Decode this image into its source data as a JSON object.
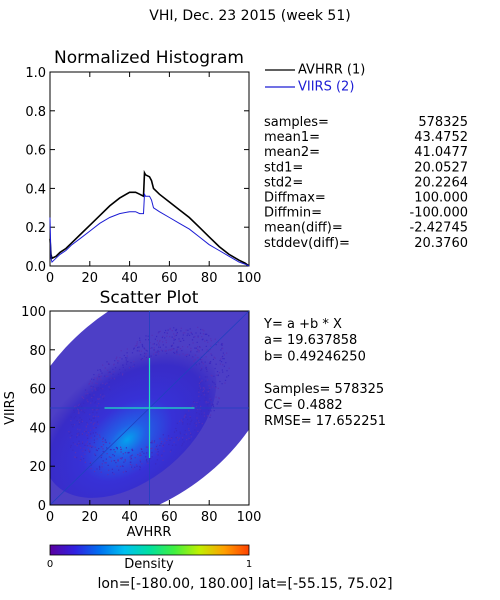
{
  "figure": {
    "title": "VHI,  Dec. 23 2015 (week 51)",
    "footer": "lon=[-180.00, 180.00] lat=[-55.15, 75.02]"
  },
  "chart_data": [
    {
      "type": "line",
      "title": "Normalized Histogram",
      "xlim": [
        0,
        100
      ],
      "ylim": [
        0,
        1.0
      ],
      "xticks": [
        "0",
        "20",
        "40",
        "60",
        "80",
        "100"
      ],
      "yticks": [
        "0.0",
        "0.2",
        "0.4",
        "0.6",
        "0.8",
        "1.0"
      ],
      "series": [
        {
          "name": "AVHRR (1)",
          "color": "#000000",
          "x": [
            0,
            0.5,
            1,
            3,
            5,
            8,
            11,
            15,
            20,
            25,
            30,
            35,
            40,
            43,
            45,
            47,
            47.5,
            48,
            50,
            51,
            52,
            55,
            60,
            65,
            70,
            75,
            80,
            85,
            90,
            95,
            98,
            100
          ],
          "y": [
            0.14,
            0.06,
            0.04,
            0.05,
            0.07,
            0.09,
            0.12,
            0.16,
            0.21,
            0.26,
            0.31,
            0.35,
            0.38,
            0.38,
            0.37,
            0.36,
            0.48,
            0.47,
            0.46,
            0.44,
            0.4,
            0.37,
            0.33,
            0.29,
            0.25,
            0.2,
            0.15,
            0.1,
            0.06,
            0.03,
            0.015,
            0.0
          ]
        },
        {
          "name": "VIIRS (2)",
          "color": "#1c1cd4",
          "x": [
            0,
            0.5,
            1,
            3,
            5,
            8,
            11,
            15,
            20,
            25,
            30,
            35,
            40,
            43,
            45,
            47,
            47.5,
            48,
            50,
            51,
            52,
            55,
            60,
            65,
            70,
            75,
            80,
            85,
            90,
            95,
            98,
            100
          ],
          "y": [
            0.25,
            0.04,
            0.02,
            0.04,
            0.06,
            0.08,
            0.11,
            0.14,
            0.18,
            0.22,
            0.25,
            0.27,
            0.28,
            0.28,
            0.27,
            0.27,
            0.37,
            0.36,
            0.36,
            0.34,
            0.3,
            0.28,
            0.25,
            0.22,
            0.19,
            0.15,
            0.11,
            0.08,
            0.05,
            0.02,
            0.01,
            0.0
          ]
        }
      ],
      "stats": [
        {
          "label": "samples=",
          "value": "578325"
        },
        {
          "label": "mean1=",
          "value": "43.4752"
        },
        {
          "label": "mean2=",
          "value": "41.0477"
        },
        {
          "label": "std1=",
          "value": "20.0527"
        },
        {
          "label": "std2=",
          "value": "20.2264"
        },
        {
          "label": "Diffmax=",
          "value": "100.000"
        },
        {
          "label": "Diffmin=",
          "value": "-100.000"
        },
        {
          "label": "mean(diff)=",
          "value": "-2.42745"
        },
        {
          "label": "stddev(diff)=",
          "value": "20.3760"
        }
      ]
    },
    {
      "type": "scatter",
      "title": "Scatter Plot",
      "xlabel": "AVHRR",
      "ylabel": "VIIRS",
      "xlim": [
        0,
        100
      ],
      "ylim": [
        0,
        100
      ],
      "xticks": [
        "0",
        "20",
        "40",
        "60",
        "80",
        "100"
      ],
      "yticks": [
        "0",
        "20",
        "40",
        "60",
        "80",
        "100"
      ],
      "reference_lines": {
        "x": 50,
        "y": 50,
        "one_to_one": true
      },
      "regression": {
        "a": 19.637858,
        "b": 0.4924625
      },
      "density_center": [
        42,
        38
      ],
      "annotations": [
        "Y= a +b * X",
        "a= 19.637858",
        "b= 0.49246250",
        "",
        "Samples= 578325",
        "CC=  0.4882",
        "RMSE= 17.652251"
      ],
      "colorbar": {
        "label": "Density",
        "min_label": "0",
        "max_label": "1",
        "colors": [
          "#5a00a0",
          "#3020e0",
          "#0070f0",
          "#00c0f0",
          "#00e0a0",
          "#40f040",
          "#c0f000",
          "#ffa000",
          "#ff4000"
        ]
      },
      "background_color": "#2a2ab0"
    }
  ]
}
